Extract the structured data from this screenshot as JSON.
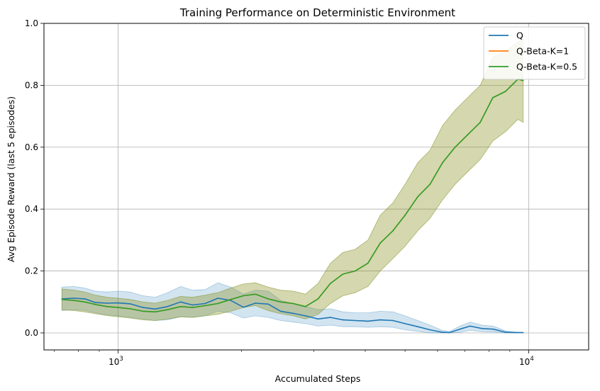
{
  "chart_data": {
    "type": "line",
    "title": "Training Performance on Deterministic Environment",
    "xlabel": "Accumulated Steps",
    "ylabel": "Avg Episode Reward (last 5 episodes)",
    "x_scale": "log",
    "xlim": [
      660,
      14000
    ],
    "ylim": [
      -0.055,
      1.0
    ],
    "grid": true,
    "legend_position": "top-right",
    "x_ticks": [
      {
        "value": 1000,
        "base": "10",
        "exp": "3"
      },
      {
        "value": 10000,
        "base": "10",
        "exp": "4"
      }
    ],
    "y_ticks": [
      {
        "value": 0.0,
        "label": "0.0"
      },
      {
        "value": 0.2,
        "label": "0.2"
      },
      {
        "value": 0.4,
        "label": "0.4"
      },
      {
        "value": 0.6,
        "label": "0.6"
      },
      {
        "value": 0.8,
        "label": "0.8"
      },
      {
        "value": 1.0,
        "label": "1.0"
      }
    ],
    "series": [
      {
        "name": "Q",
        "color": "#1f77b4",
        "band_color": "#1f77b4",
        "x": [
          730,
          780,
          830,
          880,
          940,
          1000,
          1070,
          1150,
          1230,
          1320,
          1420,
          1520,
          1630,
          1750,
          1880,
          2020,
          2160,
          2320,
          2490,
          2670,
          2860,
          3070,
          3290,
          3530,
          3780,
          4060,
          4350,
          4670,
          5000,
          5370,
          5750,
          6170,
          6420,
          6800,
          7200,
          7700,
          8200,
          8800,
          9300,
          9700
        ],
        "y": [
          0.11,
          0.112,
          0.11,
          0.098,
          0.096,
          0.097,
          0.094,
          0.082,
          0.077,
          0.085,
          0.1,
          0.09,
          0.095,
          0.112,
          0.105,
          0.083,
          0.096,
          0.093,
          0.07,
          0.063,
          0.055,
          0.045,
          0.05,
          0.042,
          0.04,
          0.038,
          0.042,
          0.04,
          0.03,
          0.02,
          0.01,
          0.002,
          0.001,
          0.012,
          0.022,
          0.014,
          0.012,
          0.002,
          0.001,
          0.001
        ],
        "lower": [
          0.072,
          0.075,
          0.073,
          0.065,
          0.058,
          0.055,
          0.05,
          0.045,
          0.04,
          0.042,
          0.052,
          0.05,
          0.055,
          0.07,
          0.065,
          0.048,
          0.055,
          0.05,
          0.04,
          0.035,
          0.03,
          0.022,
          0.025,
          0.02,
          0.02,
          0.018,
          0.02,
          0.018,
          0.01,
          0.005,
          0.0,
          0.0,
          0.0,
          0.002,
          0.008,
          0.004,
          0.003,
          0.0,
          0.0,
          0.0
        ],
        "upper": [
          0.148,
          0.15,
          0.145,
          0.135,
          0.132,
          0.135,
          0.132,
          0.12,
          0.115,
          0.13,
          0.15,
          0.138,
          0.14,
          0.162,
          0.148,
          0.125,
          0.138,
          0.135,
          0.105,
          0.095,
          0.085,
          0.075,
          0.078,
          0.068,
          0.065,
          0.065,
          0.07,
          0.068,
          0.055,
          0.04,
          0.025,
          0.008,
          0.005,
          0.022,
          0.035,
          0.025,
          0.022,
          0.006,
          0.003,
          0.002
        ]
      },
      {
        "name": "Q-Beta-K=1",
        "color": "#ff7f0e",
        "band_color": "#ff7f0e",
        "x": [
          730,
          780,
          830,
          880,
          940,
          1000,
          1070,
          1150,
          1230,
          1320,
          1420,
          1520,
          1630,
          1750,
          1880,
          2020,
          2160,
          2320,
          2490,
          2670,
          2860,
          3070,
          3290,
          3530,
          3780,
          4060,
          4350,
          4670,
          5000,
          5370,
          5750,
          6170,
          6620,
          7100,
          7620,
          8180,
          8780,
          9420,
          9700
        ],
        "y": [
          0.108,
          0.105,
          0.1,
          0.092,
          0.085,
          0.082,
          0.078,
          0.07,
          0.068,
          0.075,
          0.085,
          0.082,
          0.088,
          0.095,
          0.108,
          0.12,
          0.125,
          0.11,
          0.1,
          0.095,
          0.085,
          0.11,
          0.16,
          0.19,
          0.2,
          0.225,
          0.29,
          0.33,
          0.38,
          0.44,
          0.48,
          0.55,
          0.6,
          0.64,
          0.68,
          0.76,
          0.78,
          0.82,
          0.815
        ],
        "lower": [
          0.075,
          0.072,
          0.068,
          0.062,
          0.056,
          0.052,
          0.048,
          0.042,
          0.04,
          0.045,
          0.052,
          0.05,
          0.055,
          0.06,
          0.07,
          0.082,
          0.088,
          0.072,
          0.062,
          0.055,
          0.045,
          0.06,
          0.095,
          0.12,
          0.13,
          0.15,
          0.2,
          0.24,
          0.28,
          0.33,
          0.37,
          0.43,
          0.48,
          0.52,
          0.56,
          0.62,
          0.65,
          0.69,
          0.68
        ],
        "upper": [
          0.142,
          0.138,
          0.132,
          0.122,
          0.115,
          0.112,
          0.108,
          0.1,
          0.096,
          0.105,
          0.118,
          0.115,
          0.122,
          0.13,
          0.145,
          0.158,
          0.162,
          0.148,
          0.138,
          0.135,
          0.125,
          0.16,
          0.225,
          0.26,
          0.27,
          0.3,
          0.38,
          0.42,
          0.48,
          0.55,
          0.59,
          0.67,
          0.72,
          0.76,
          0.8,
          0.89,
          0.91,
          0.94,
          0.95
        ]
      },
      {
        "name": "Q-Beta-K=0.5",
        "color": "#2ca02c",
        "band_color": "#2ca02c",
        "x": [
          730,
          780,
          830,
          880,
          940,
          1000,
          1070,
          1150,
          1230,
          1320,
          1420,
          1520,
          1630,
          1750,
          1880,
          2020,
          2160,
          2320,
          2490,
          2670,
          2860,
          3070,
          3290,
          3530,
          3780,
          4060,
          4350,
          4670,
          5000,
          5370,
          5750,
          6170,
          6620,
          7100,
          7620,
          8180,
          8780,
          9420,
          9700
        ],
        "y": [
          0.108,
          0.105,
          0.1,
          0.092,
          0.085,
          0.082,
          0.078,
          0.07,
          0.068,
          0.075,
          0.085,
          0.082,
          0.088,
          0.095,
          0.108,
          0.12,
          0.125,
          0.11,
          0.1,
          0.095,
          0.085,
          0.11,
          0.16,
          0.19,
          0.2,
          0.225,
          0.29,
          0.33,
          0.38,
          0.44,
          0.48,
          0.55,
          0.6,
          0.64,
          0.68,
          0.76,
          0.78,
          0.82,
          0.815
        ],
        "lower": [
          0.075,
          0.072,
          0.068,
          0.062,
          0.056,
          0.052,
          0.048,
          0.042,
          0.04,
          0.045,
          0.052,
          0.05,
          0.055,
          0.06,
          0.07,
          0.082,
          0.088,
          0.072,
          0.062,
          0.055,
          0.045,
          0.06,
          0.095,
          0.12,
          0.13,
          0.15,
          0.2,
          0.24,
          0.28,
          0.33,
          0.37,
          0.43,
          0.48,
          0.52,
          0.56,
          0.62,
          0.65,
          0.69,
          0.68
        ],
        "upper": [
          0.142,
          0.138,
          0.132,
          0.122,
          0.115,
          0.112,
          0.108,
          0.1,
          0.096,
          0.105,
          0.118,
          0.115,
          0.122,
          0.13,
          0.145,
          0.158,
          0.162,
          0.148,
          0.138,
          0.135,
          0.125,
          0.16,
          0.225,
          0.26,
          0.27,
          0.3,
          0.38,
          0.42,
          0.48,
          0.55,
          0.59,
          0.67,
          0.72,
          0.76,
          0.8,
          0.89,
          0.91,
          0.94,
          0.95
        ]
      }
    ]
  }
}
